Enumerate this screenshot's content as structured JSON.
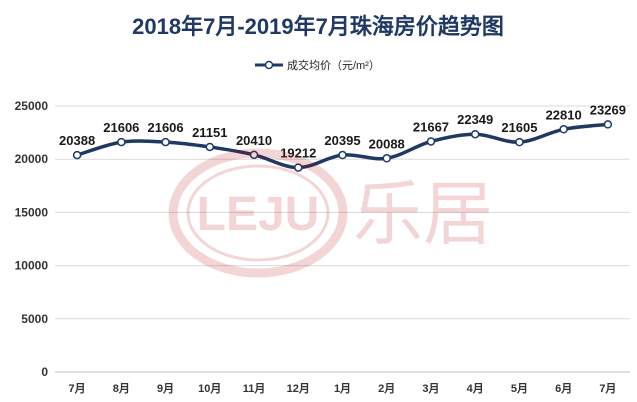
{
  "chart_data": {
    "type": "line",
    "title": "2018年7月-2019年7月珠海房价趋势图",
    "xlabel": "",
    "ylabel": "",
    "categories": [
      "7月",
      "8月",
      "9月",
      "10月",
      "11月",
      "12月",
      "1月",
      "2月",
      "3月",
      "4月",
      "5月",
      "6月",
      "7月"
    ],
    "series": [
      {
        "name": "成交均价（元/m²）",
        "values": [
          20388,
          21606,
          21606,
          21151,
          20410,
          19212,
          20395,
          20088,
          21667,
          22349,
          21605,
          22810,
          23269
        ]
      }
    ],
    "ylim": [
      0,
      25000
    ],
    "yticks": [
      0,
      5000,
      10000,
      15000,
      20000,
      25000
    ],
    "grid": "horizontal",
    "legend_position": "top-center",
    "colors": {
      "line": "#1f3864",
      "marker_fill": "#ffffff",
      "marker_stroke": "#1f3864",
      "grid": "#d9d9d9"
    }
  },
  "watermark": {
    "latin": "LEJU",
    "cjk": "乐居",
    "color": "#c00000"
  }
}
